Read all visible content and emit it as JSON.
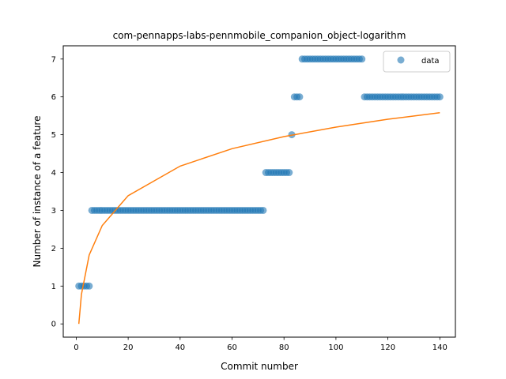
{
  "chart_data": {
    "type": "scatter",
    "title": "com-pennapps-labs-pennmobile_companion_object-logarithm",
    "xlabel": "Commit number",
    "ylabel": "Number of instance of a feature",
    "xlim": [
      -5,
      146
    ],
    "ylim": [
      -0.35,
      7.35
    ],
    "xticks": [
      0,
      20,
      40,
      60,
      80,
      100,
      120,
      140
    ],
    "yticks": [
      0,
      1,
      2,
      3,
      4,
      5,
      6,
      7
    ],
    "grid": false,
    "legend": {
      "position": "top-right",
      "entries": [
        "data"
      ]
    },
    "colors": {
      "data": "#1f77b4",
      "fit": "#ff7f0e"
    },
    "series": [
      {
        "name": "data",
        "type": "scatter",
        "segments": [
          {
            "x_start": 1,
            "x_end": 5,
            "y": 1
          },
          {
            "x_start": 6,
            "x_end": 72,
            "y": 3
          },
          {
            "x_start": 73,
            "x_end": 82,
            "y": 4
          },
          {
            "x_start": 83,
            "x_end": 83,
            "y": 5
          },
          {
            "x_start": 84,
            "x_end": 86,
            "y": 6
          },
          {
            "x_start": 87,
            "x_end": 110,
            "y": 7
          },
          {
            "x_start": 111,
            "x_end": 140,
            "y": 6
          }
        ]
      },
      {
        "type": "line",
        "fit": "logarithmic",
        "curve_points": [
          [
            1,
            0.0
          ],
          [
            2,
            0.78
          ],
          [
            5,
            1.82
          ],
          [
            10,
            2.6
          ],
          [
            20,
            3.39
          ],
          [
            40,
            4.17
          ],
          [
            60,
            4.63
          ],
          [
            80,
            4.95
          ],
          [
            100,
            5.2
          ],
          [
            120,
            5.41
          ],
          [
            140,
            5.58
          ]
        ]
      }
    ]
  }
}
